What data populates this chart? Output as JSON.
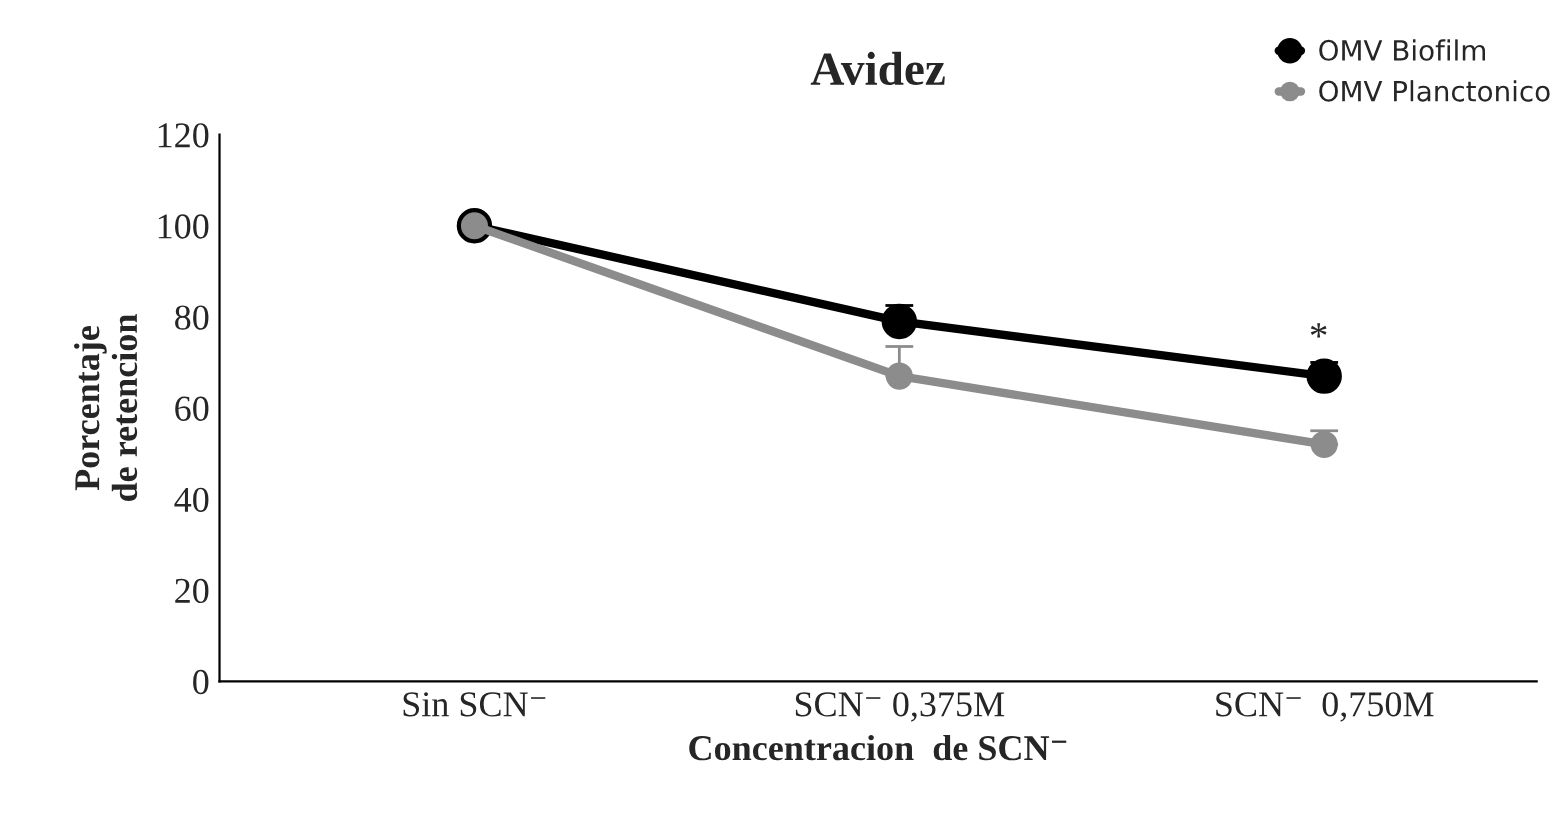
{
  "chart_data": {
    "type": "line",
    "title": "Avidez",
    "xlabel": "Concentracion  de SCN⁻",
    "ylabel": "Porcentaje\nde retencion",
    "categories": [
      "Sin SCN⁻",
      "SCN⁻ 0,375M",
      "SCN⁻  0,750M"
    ],
    "series": [
      {
        "name": "OMV Biofilm",
        "color": "#000000",
        "values": [
          100,
          79,
          67
        ],
        "errors": [
          null,
          [
            79,
            82.5
          ],
          [
            67,
            70
          ]
        ]
      },
      {
        "name": "OMV Planctonico",
        "color": "#8c8c8c",
        "values": [
          100,
          67,
          52
        ],
        "errors": [
          null,
          [
            67,
            73.5
          ],
          [
            52,
            55
          ]
        ]
      }
    ],
    "ylim": [
      0,
      120
    ],
    "yticks": [
      0,
      20,
      40,
      60,
      80,
      100,
      120
    ],
    "grid": false,
    "legend": "top right",
    "marker": "circle",
    "line_style": "solid",
    "annotations": [
      "*"
    ]
  }
}
